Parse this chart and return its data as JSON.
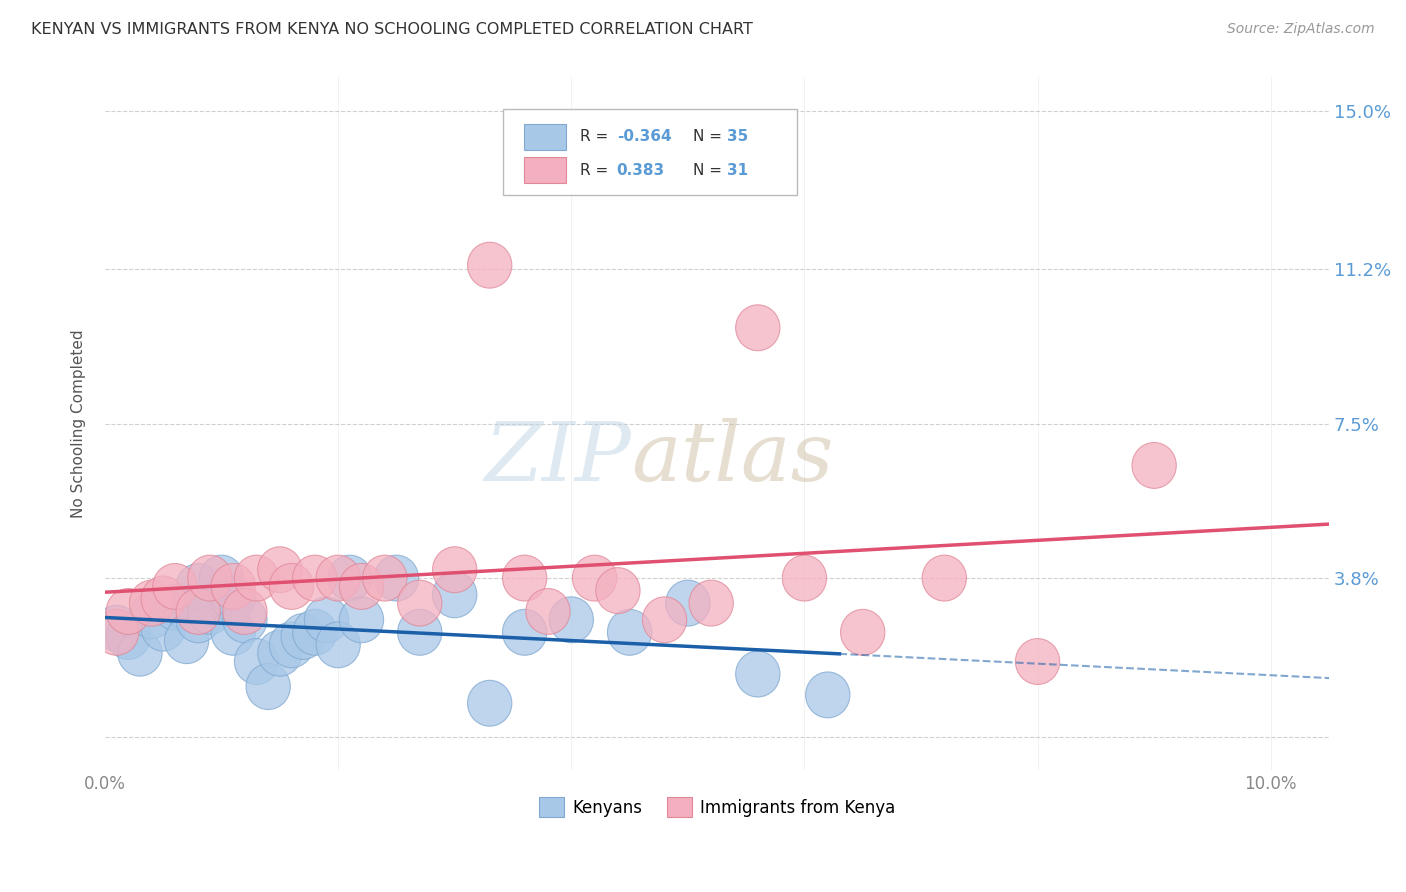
{
  "title": "KENYAN VS IMMIGRANTS FROM KENYA NO SCHOOLING COMPLETED CORRELATION CHART",
  "source": "Source: ZipAtlas.com",
  "ylabel": "No Schooling Completed",
  "xlim": [
    0.0,
    0.105
  ],
  "ylim": [
    -0.008,
    0.158
  ],
  "ytick_vals": [
    0.0,
    0.038,
    0.075,
    0.112,
    0.15
  ],
  "ytick_labels": [
    "",
    "3.8%",
    "7.5%",
    "11.2%",
    "15.0%"
  ],
  "xtick_vals": [
    0.0,
    0.02,
    0.04,
    0.06,
    0.08,
    0.1
  ],
  "xtick_labels": [
    "0.0%",
    "",
    "",
    "",
    "",
    "10.0%"
  ],
  "color_kenyans": "#a8c8e8",
  "color_immigrants": "#f4b0c0",
  "edge_kenyans": "#80a8d0",
  "edge_immigrants": "#e08898",
  "line_color_kenyans": "#1a5fa8",
  "line_color_immigrants": "#e05070",
  "background_color": "#ffffff",
  "grid_color": "#d0d0d0",
  "kenyans_x": [
    0.001,
    0.002,
    0.003,
    0.004,
    0.005,
    0.006,
    0.007,
    0.007,
    0.008,
    0.008,
    0.009,
    0.01,
    0.011,
    0.011,
    0.012,
    0.013,
    0.014,
    0.015,
    0.016,
    0.017,
    0.018,
    0.019,
    0.02,
    0.021,
    0.022,
    0.025,
    0.027,
    0.03,
    0.033,
    0.036,
    0.04,
    0.045,
    0.05,
    0.056,
    0.062
  ],
  "kenyans_y": [
    0.026,
    0.024,
    0.02,
    0.029,
    0.026,
    0.031,
    0.031,
    0.023,
    0.028,
    0.036,
    0.03,
    0.038,
    0.033,
    0.025,
    0.028,
    0.018,
    0.012,
    0.02,
    0.022,
    0.024,
    0.025,
    0.028,
    0.022,
    0.038,
    0.028,
    0.038,
    0.025,
    0.034,
    0.008,
    0.025,
    0.028,
    0.025,
    0.032,
    0.015,
    0.01
  ],
  "immigrants_x": [
    0.001,
    0.002,
    0.004,
    0.005,
    0.006,
    0.008,
    0.009,
    0.011,
    0.012,
    0.013,
    0.015,
    0.016,
    0.018,
    0.02,
    0.022,
    0.024,
    0.027,
    0.03,
    0.033,
    0.036,
    0.038,
    0.042,
    0.044,
    0.048,
    0.052,
    0.056,
    0.06,
    0.065,
    0.072,
    0.08,
    0.09
  ],
  "immigrants_y": [
    0.025,
    0.03,
    0.032,
    0.033,
    0.036,
    0.03,
    0.038,
    0.036,
    0.03,
    0.038,
    0.04,
    0.036,
    0.038,
    0.038,
    0.036,
    0.038,
    0.032,
    0.04,
    0.113,
    0.038,
    0.03,
    0.038,
    0.035,
    0.028,
    0.032,
    0.098,
    0.038,
    0.025,
    0.038,
    0.018,
    0.065
  ]
}
